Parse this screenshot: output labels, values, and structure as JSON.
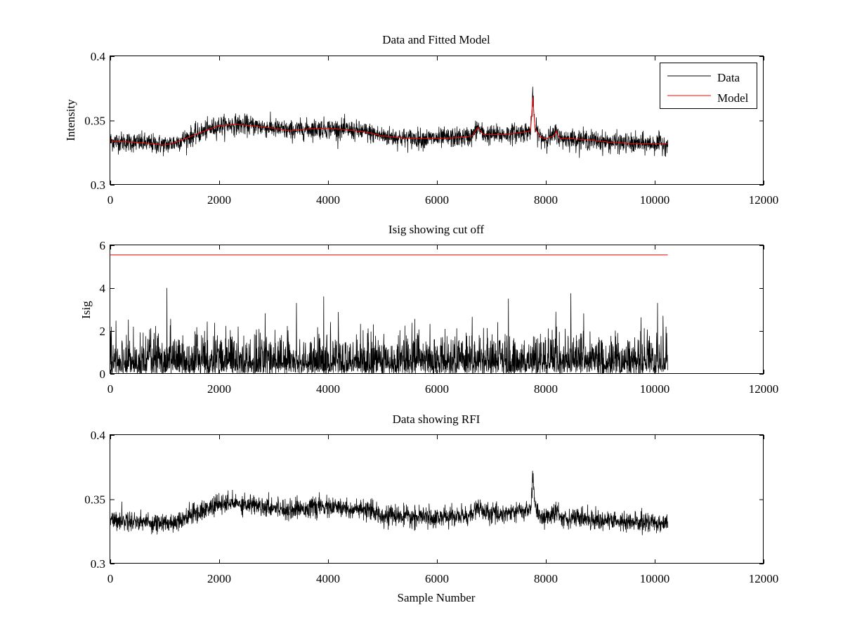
{
  "chart_data": [
    {
      "type": "line",
      "title": "Data and Fitted Model",
      "xlabel": "",
      "ylabel": "Intensity",
      "xlim": [
        0,
        12000
      ],
      "ylim": [
        0.3,
        0.4
      ],
      "xticks": [
        "0",
        "2000",
        "4000",
        "6000",
        "8000",
        "10000",
        "12000"
      ],
      "yticks": [
        "0.3",
        "0.35",
        "0.4"
      ],
      "ytick_values": [
        0.3,
        0.35,
        0.4
      ],
      "grid": false,
      "legend": {
        "position": "top-right",
        "entries": [
          "Data",
          "Model"
        ]
      },
      "series": [
        {
          "name": "Data",
          "color": "#000000",
          "kind": "noisy",
          "noise": 0.0038,
          "x": [
            0,
            500,
            1000,
            1200,
            1500,
            1800,
            2000,
            2300,
            2600,
            3000,
            3300,
            3500,
            3900,
            4300,
            4700,
            5000,
            5500,
            6000,
            6500,
            6650,
            6750,
            6850,
            7000,
            7200,
            7400,
            7600,
            7720,
            7760,
            7800,
            7900,
            8000,
            8150,
            8200,
            8250,
            8400,
            8800,
            9200,
            9600,
            10000,
            10240
          ],
          "values": [
            0.334,
            0.333,
            0.331,
            0.333,
            0.338,
            0.343,
            0.346,
            0.347,
            0.346,
            0.344,
            0.342,
            0.343,
            0.344,
            0.343,
            0.341,
            0.338,
            0.336,
            0.336,
            0.337,
            0.338,
            0.345,
            0.339,
            0.339,
            0.339,
            0.34,
            0.341,
            0.342,
            0.368,
            0.344,
            0.337,
            0.336,
            0.338,
            0.342,
            0.336,
            0.336,
            0.335,
            0.333,
            0.332,
            0.332,
            0.332
          ]
        },
        {
          "name": "Model",
          "color": "#ff0000",
          "kind": "smooth",
          "x": [
            0,
            500,
            1000,
            1200,
            1500,
            1800,
            2000,
            2300,
            2600,
            3000,
            3300,
            3500,
            3900,
            4300,
            4700,
            5000,
            5500,
            6000,
            6500,
            6650,
            6750,
            6850,
            7000,
            7200,
            7400,
            7600,
            7720,
            7760,
            7800,
            7900,
            8000,
            8150,
            8200,
            8250,
            8400,
            8800,
            9200,
            9600,
            10000,
            10240
          ],
          "values": [
            0.334,
            0.333,
            0.331,
            0.333,
            0.338,
            0.343,
            0.346,
            0.347,
            0.346,
            0.344,
            0.342,
            0.343,
            0.344,
            0.343,
            0.341,
            0.338,
            0.336,
            0.336,
            0.337,
            0.338,
            0.345,
            0.339,
            0.339,
            0.339,
            0.34,
            0.341,
            0.342,
            0.368,
            0.344,
            0.337,
            0.336,
            0.338,
            0.342,
            0.336,
            0.336,
            0.335,
            0.333,
            0.332,
            0.332,
            0.332
          ]
        }
      ]
    },
    {
      "type": "line",
      "title": "Isig showing cut off",
      "xlabel": "",
      "ylabel": "Isig",
      "xlim": [
        0,
        12000
      ],
      "ylim": [
        0,
        6
      ],
      "xticks": [
        "0",
        "2000",
        "4000",
        "6000",
        "8000",
        "10000",
        "12000"
      ],
      "yticks": [
        "0",
        "2",
        "4",
        "6"
      ],
      "ytick_values": [
        0,
        2,
        4,
        6
      ],
      "grid": false,
      "series": [
        {
          "name": "Isig",
          "color": "#000000",
          "kind": "abs-noise",
          "x_range": [
            0,
            10240
          ],
          "typical_max": 2.9,
          "peaks": [
            {
              "x": 1040,
              "y": 4.0
            },
            {
              "x": 3920,
              "y": 3.6
            },
            {
              "x": 8460,
              "y": 3.75
            },
            {
              "x": 7310,
              "y": 3.5
            },
            {
              "x": 3420,
              "y": 3.3
            },
            {
              "x": 10050,
              "y": 3.3
            }
          ]
        },
        {
          "name": "Cut off",
          "color": "#ff0000",
          "kind": "flat",
          "x": [
            0,
            10240
          ],
          "values": [
            5.55,
            5.55
          ]
        }
      ]
    },
    {
      "type": "line",
      "title": "Data showing RFI",
      "xlabel": "Sample Number",
      "ylabel": "",
      "xlim": [
        0,
        12000
      ],
      "ylim": [
        0.3,
        0.4
      ],
      "xticks": [
        "0",
        "2000",
        "4000",
        "6000",
        "8000",
        "10000",
        "12000"
      ],
      "yticks": [
        "0.3",
        "0.35",
        "0.4"
      ],
      "ytick_values": [
        0.3,
        0.35,
        0.4
      ],
      "grid": false,
      "series": [
        {
          "name": "Data",
          "color": "#000000",
          "kind": "noisy",
          "noise": 0.0038,
          "x": [
            0,
            500,
            1000,
            1200,
            1500,
            1800,
            2000,
            2300,
            2600,
            3000,
            3300,
            3500,
            3900,
            4300,
            4700,
            5000,
            5500,
            6000,
            6500,
            6650,
            6750,
            6850,
            7000,
            7200,
            7400,
            7600,
            7720,
            7760,
            7800,
            7900,
            8000,
            8150,
            8200,
            8250,
            8400,
            8800,
            9200,
            9600,
            10000,
            10240
          ],
          "values": [
            0.334,
            0.333,
            0.331,
            0.333,
            0.338,
            0.343,
            0.346,
            0.347,
            0.346,
            0.344,
            0.342,
            0.343,
            0.344,
            0.343,
            0.341,
            0.338,
            0.336,
            0.336,
            0.337,
            0.338,
            0.345,
            0.339,
            0.339,
            0.339,
            0.34,
            0.341,
            0.342,
            0.368,
            0.344,
            0.337,
            0.336,
            0.338,
            0.342,
            0.336,
            0.336,
            0.335,
            0.333,
            0.332,
            0.332,
            0.332
          ]
        }
      ]
    }
  ]
}
